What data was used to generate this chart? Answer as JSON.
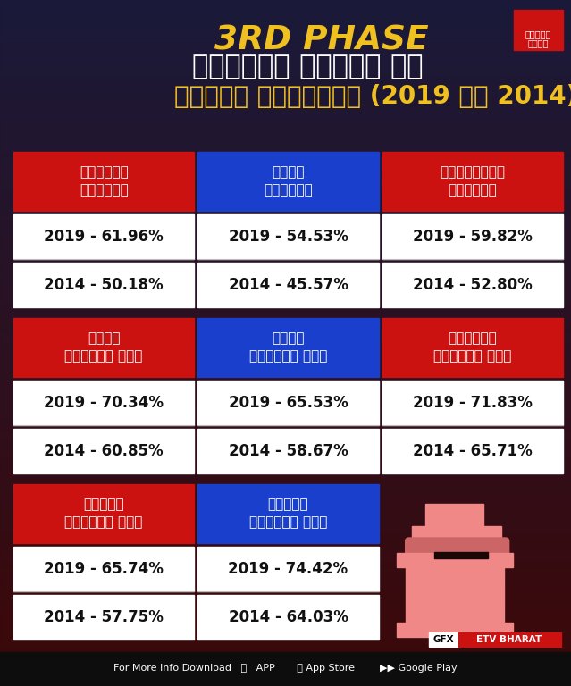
{
  "bg_top": "#1a1a3a",
  "bg_bottom": "#3d0808",
  "red_header": "#cc1111",
  "blue_header": "#1a3fcc",
  "white_cell": "#ffffff",
  "cell_text_color": "#111111",
  "header_text_color": "#ffffff",
  "title_yellow": "#f0c020",
  "title_white": "#ffffff",
  "footer_bg": "#0d0d0d",
  "footer_text_color": "#ffffff",
  "pink": "#f08888",
  "pink_dark": "#cc6666",
  "dark_outline": "#1a0a0a",
  "title_line1": "3RD PHASE",
  "title_line2": "लोकसभा सीटों का",
  "title_line3": "मतदान प्रतिशत (2019 और 2014)",
  "etv_red": "#cc1111",
  "etv_text": "एटीवी\nभारत",
  "gfx_text": "GFX",
  "etv_bharat": "ETV BHARAT",
  "footer_line": "For More Info Download   APP        App Store        Google Play",
  "groups": [
    {
      "cols": 3,
      "headers": [
        {
          "label": "मुरैना\nलोकसभा",
          "bg": "#cc1111"
        },
        {
          "label": "भिंड\nलोकसभा",
          "bg": "#1a3fcc"
        },
        {
          "label": "ग्वालियर\nलोकसभा",
          "bg": "#cc1111"
        }
      ],
      "row2019": [
        "2019 - 61.96%",
        "2019 - 54.53%",
        "2019 - 59.82%"
      ],
      "row2014": [
        "2014 - 50.18%",
        "2014 - 45.57%",
        "2014 - 52.80%"
      ]
    },
    {
      "cols": 3,
      "headers": [
        {
          "label": "गुना\nलोकसभा सीट",
          "bg": "#cc1111"
        },
        {
          "label": "सागर\nलोकसभा सीट",
          "bg": "#1a3fcc"
        },
        {
          "label": "विदिशा\nलोकसभा सीट",
          "bg": "#cc1111"
        }
      ],
      "row2019": [
        "2019 - 70.34%",
        "2019 - 65.53%",
        "2019 - 71.83%"
      ],
      "row2014": [
        "2014 - 60.85%",
        "2014 - 58.67%",
        "2014 - 65.71%"
      ]
    },
    {
      "cols": 2,
      "headers": [
        {
          "label": "भोपाल\nलोकसभा सीट",
          "bg": "#cc1111"
        },
        {
          "label": "राजगढ़\nलोकसभा सीट",
          "bg": "#1a3fcc"
        }
      ],
      "row2019": [
        "2019 - 65.74%",
        "2019 - 74.42%"
      ],
      "row2014": [
        "2014 - 57.75%",
        "2014 - 64.03%"
      ]
    }
  ]
}
